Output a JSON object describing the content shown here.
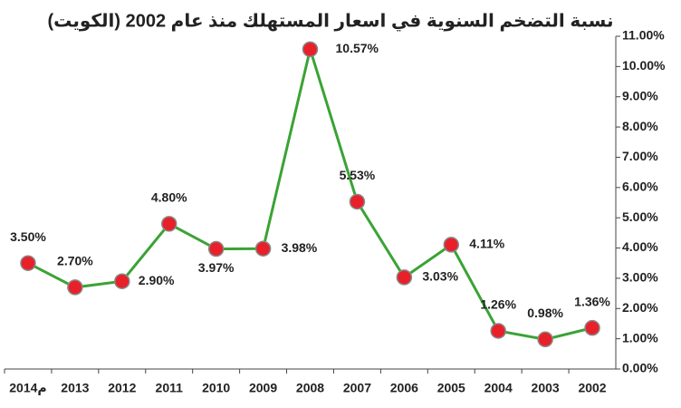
{
  "chart_data": {
    "type": "line",
    "title": "نسبة التضخم السنوية في اسعار المستهلك منذ عام 2002 (الكويت)",
    "categories": [
      "2014م",
      "2013",
      "2012",
      "2011",
      "2010",
      "2009",
      "2008",
      "2007",
      "2006",
      "2005",
      "2004",
      "2003",
      "2002"
    ],
    "series": [
      {
        "color": "#3aa335",
        "marker_color": "#e8202a",
        "values": [
          3.5,
          2.7,
          2.9,
          4.8,
          3.97,
          3.98,
          10.57,
          5.53,
          3.03,
          4.11,
          1.26,
          0.98,
          1.36
        ],
        "value_labels": [
          "3.50%",
          "2.70%",
          "2.90%",
          "4.80%",
          "3.97%",
          "3.98%",
          "10.57%",
          "5.53%",
          "3.03%",
          "4.11%",
          "1.26%",
          "0.98%",
          "1.36%"
        ]
      }
    ],
    "ylim": [
      0,
      11
    ],
    "yticks": [
      {
        "value": 0,
        "label": "0.00%"
      },
      {
        "value": 1,
        "label": "1.00%"
      },
      {
        "value": 2,
        "label": "2.00%"
      },
      {
        "value": 3,
        "label": "3.00%"
      },
      {
        "value": 4,
        "label": "4.00%"
      },
      {
        "value": 5,
        "label": "5.00%"
      },
      {
        "value": 6,
        "label": "6.00%"
      },
      {
        "value": 7,
        "label": "7.00%"
      },
      {
        "value": 8,
        "label": "8.00%"
      },
      {
        "value": 9,
        "label": "9.00%"
      },
      {
        "value": 10,
        "label": "10.00%"
      },
      {
        "value": 11,
        "label": "11.00%"
      }
    ],
    "y_axis_side": "right"
  }
}
